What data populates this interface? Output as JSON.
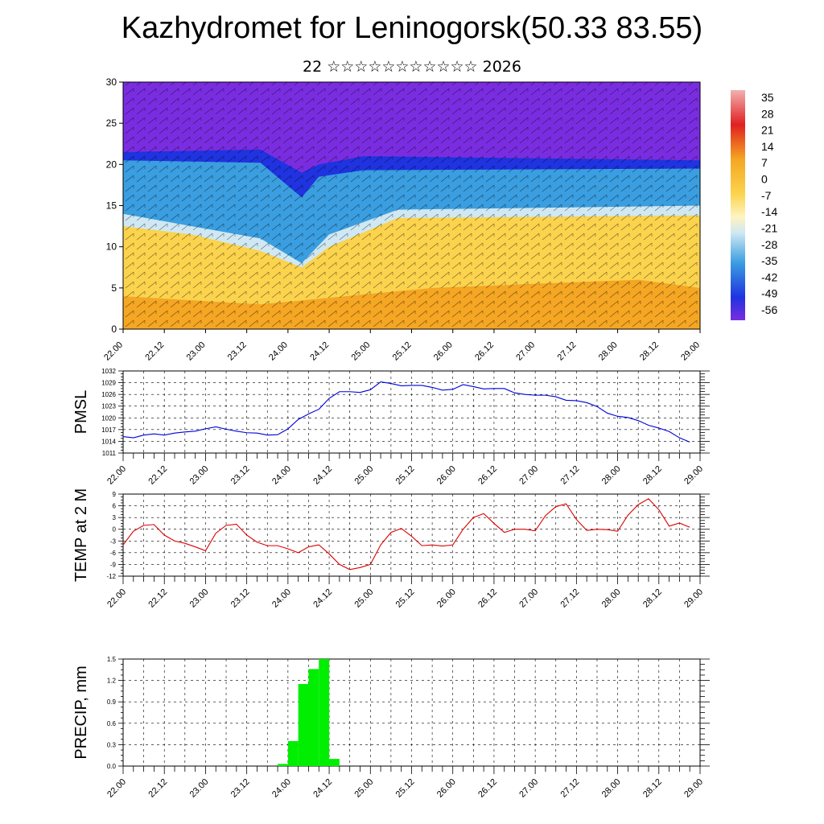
{
  "header": {
    "title": "Kazhydromet for Leninogorsk(50.33 83.55)",
    "subtitle": "22 ☆☆☆☆☆☆☆☆☆☆☆ 2026"
  },
  "chart_data": [
    {
      "type": "heatmap",
      "ylim": [
        0,
        30
      ],
      "yticks": [
        "0",
        "5",
        "10",
        "15",
        "20",
        "25",
        "30"
      ],
      "xticks": [
        "22.00",
        "22.12",
        "23.00",
        "23.12",
        "24.00",
        "24.12",
        "25.00",
        "25.12",
        "26.00",
        "26.12",
        "27.00",
        "27.12",
        "28.00",
        "28.12",
        "29.00"
      ],
      "colorbar_labels": [
        "35",
        "28",
        "21",
        "14",
        "7",
        "0",
        "-7",
        "-14",
        "-21",
        "-28",
        "-35",
        "-42",
        "-49",
        "-56"
      ],
      "colors": {
        "warm_low": "#f5a623",
        "warm_mid": "#fbd34d",
        "cold_pale": "#cfe8f3",
        "cold_blue": "#3a9ee0",
        "deep_blue": "#1f33e0",
        "purple": "#7a2de0",
        "red": "#e02020"
      }
    },
    {
      "type": "line",
      "ylabel": "PMSL",
      "ylim": [
        1011,
        1032
      ],
      "yticks": [
        "1011",
        "1014",
        "1017",
        "1020",
        "1023",
        "1026",
        "1029",
        "1032"
      ],
      "xticks": [
        "22.00",
        "22.12",
        "23.00",
        "23.12",
        "24.00",
        "24.12",
        "25.00",
        "25.12",
        "26.00",
        "26.12",
        "27.00",
        "27.12",
        "28.00",
        "28.12",
        "29.00"
      ],
      "color": "#0000dd",
      "x": [
        0,
        3,
        6,
        9,
        12,
        15,
        18,
        21,
        24,
        27,
        30,
        33,
        36,
        39,
        42,
        45,
        48,
        51,
        54,
        57,
        60,
        63,
        66,
        69,
        72,
        75,
        78,
        81,
        84,
        87,
        90,
        93,
        96,
        99,
        102,
        105,
        108,
        111,
        114,
        117,
        120,
        123,
        126,
        129,
        132,
        135,
        138,
        141,
        144,
        147,
        150,
        153,
        156,
        159,
        162,
        165
      ],
      "values": [
        1015.2,
        1014.9,
        1015.6,
        1015.9,
        1015.6,
        1016.1,
        1016.4,
        1016.6,
        1017.2,
        1017.7,
        1017.1,
        1016.6,
        1016.2,
        1016.1,
        1015.6,
        1015.7,
        1017.2,
        1019.6,
        1021.0,
        1022.2,
        1025.0,
        1026.7,
        1026.7,
        1026.5,
        1027.2,
        1029.2,
        1028.8,
        1028.2,
        1028.3,
        1028.3,
        1027.8,
        1027.1,
        1027.3,
        1028.5,
        1028.0,
        1027.4,
        1027.5,
        1027.5,
        1026.4,
        1026.0,
        1025.8,
        1025.8,
        1025.4,
        1024.5,
        1024.4,
        1023.9,
        1022.9,
        1021.2,
        1020.4,
        1020.1,
        1019.3,
        1018.1,
        1017.4,
        1016.5,
        1014.9,
        1013.8
      ]
    },
    {
      "type": "line",
      "ylabel": "TEMP at 2 M",
      "ylim": [
        -12,
        9
      ],
      "yticks": [
        "-12",
        "-9",
        "-6",
        "-3",
        "0",
        "3",
        "6",
        "9"
      ],
      "xticks": [
        "22.00",
        "22.12",
        "23.00",
        "23.12",
        "24.00",
        "24.12",
        "25.00",
        "25.12",
        "26.00",
        "26.12",
        "27.00",
        "27.12",
        "28.00",
        "28.12",
        "29.00"
      ],
      "color": "#dd0000",
      "x": [
        0,
        3,
        6,
        9,
        12,
        15,
        18,
        21,
        24,
        27,
        30,
        33,
        36,
        39,
        42,
        45,
        48,
        51,
        54,
        57,
        60,
        63,
        66,
        69,
        72,
        75,
        78,
        81,
        84,
        87,
        90,
        93,
        96,
        99,
        102,
        105,
        108,
        111,
        114,
        117,
        120,
        123,
        126,
        129,
        132,
        135,
        138,
        141,
        144,
        147,
        150,
        153,
        156,
        159,
        162,
        165
      ],
      "values": [
        -4.0,
        -0.5,
        1.0,
        1.2,
        -1.5,
        -3.0,
        -3.6,
        -4.5,
        -5.5,
        -1.0,
        1.0,
        1.3,
        -1.5,
        -3.3,
        -4.2,
        -4.2,
        -5.0,
        -6.0,
        -4.5,
        -4.0,
        -6.3,
        -9.0,
        -10.3,
        -9.8,
        -9.0,
        -4.0,
        -0.8,
        0.2,
        -1.8,
        -4.2,
        -4.0,
        -4.3,
        -4.0,
        0.0,
        3.0,
        4.0,
        1.5,
        -0.8,
        0.0,
        0.0,
        -0.4,
        3.5,
        5.8,
        6.5,
        2.5,
        -0.3,
        0.0,
        -0.1,
        -0.5,
        3.6,
        6.3,
        7.8,
        5.0,
        0.8,
        1.6,
        0.5
      ]
    },
    {
      "type": "bar",
      "ylabel": "PRECIP, mm",
      "ylim": [
        0,
        1.5
      ],
      "yticks": [
        "0.0",
        "0.3",
        "0.6",
        "0.9",
        "1.2",
        "1.5"
      ],
      "xticks": [
        "22.00",
        "22.12",
        "23.00",
        "23.12",
        "24.00",
        "24.12",
        "25.00",
        "25.12",
        "26.00",
        "26.12",
        "27.00",
        "27.12",
        "28.00",
        "28.12",
        "29.00"
      ],
      "color": "#00ee00",
      "bars": [
        {
          "x": 45,
          "value": 0.03
        },
        {
          "x": 48,
          "value": 0.35
        },
        {
          "x": 51,
          "value": 1.15
        },
        {
          "x": 54,
          "value": 1.36
        },
        {
          "x": 57,
          "value": 1.5
        },
        {
          "x": 60,
          "value": 0.1
        }
      ]
    }
  ]
}
